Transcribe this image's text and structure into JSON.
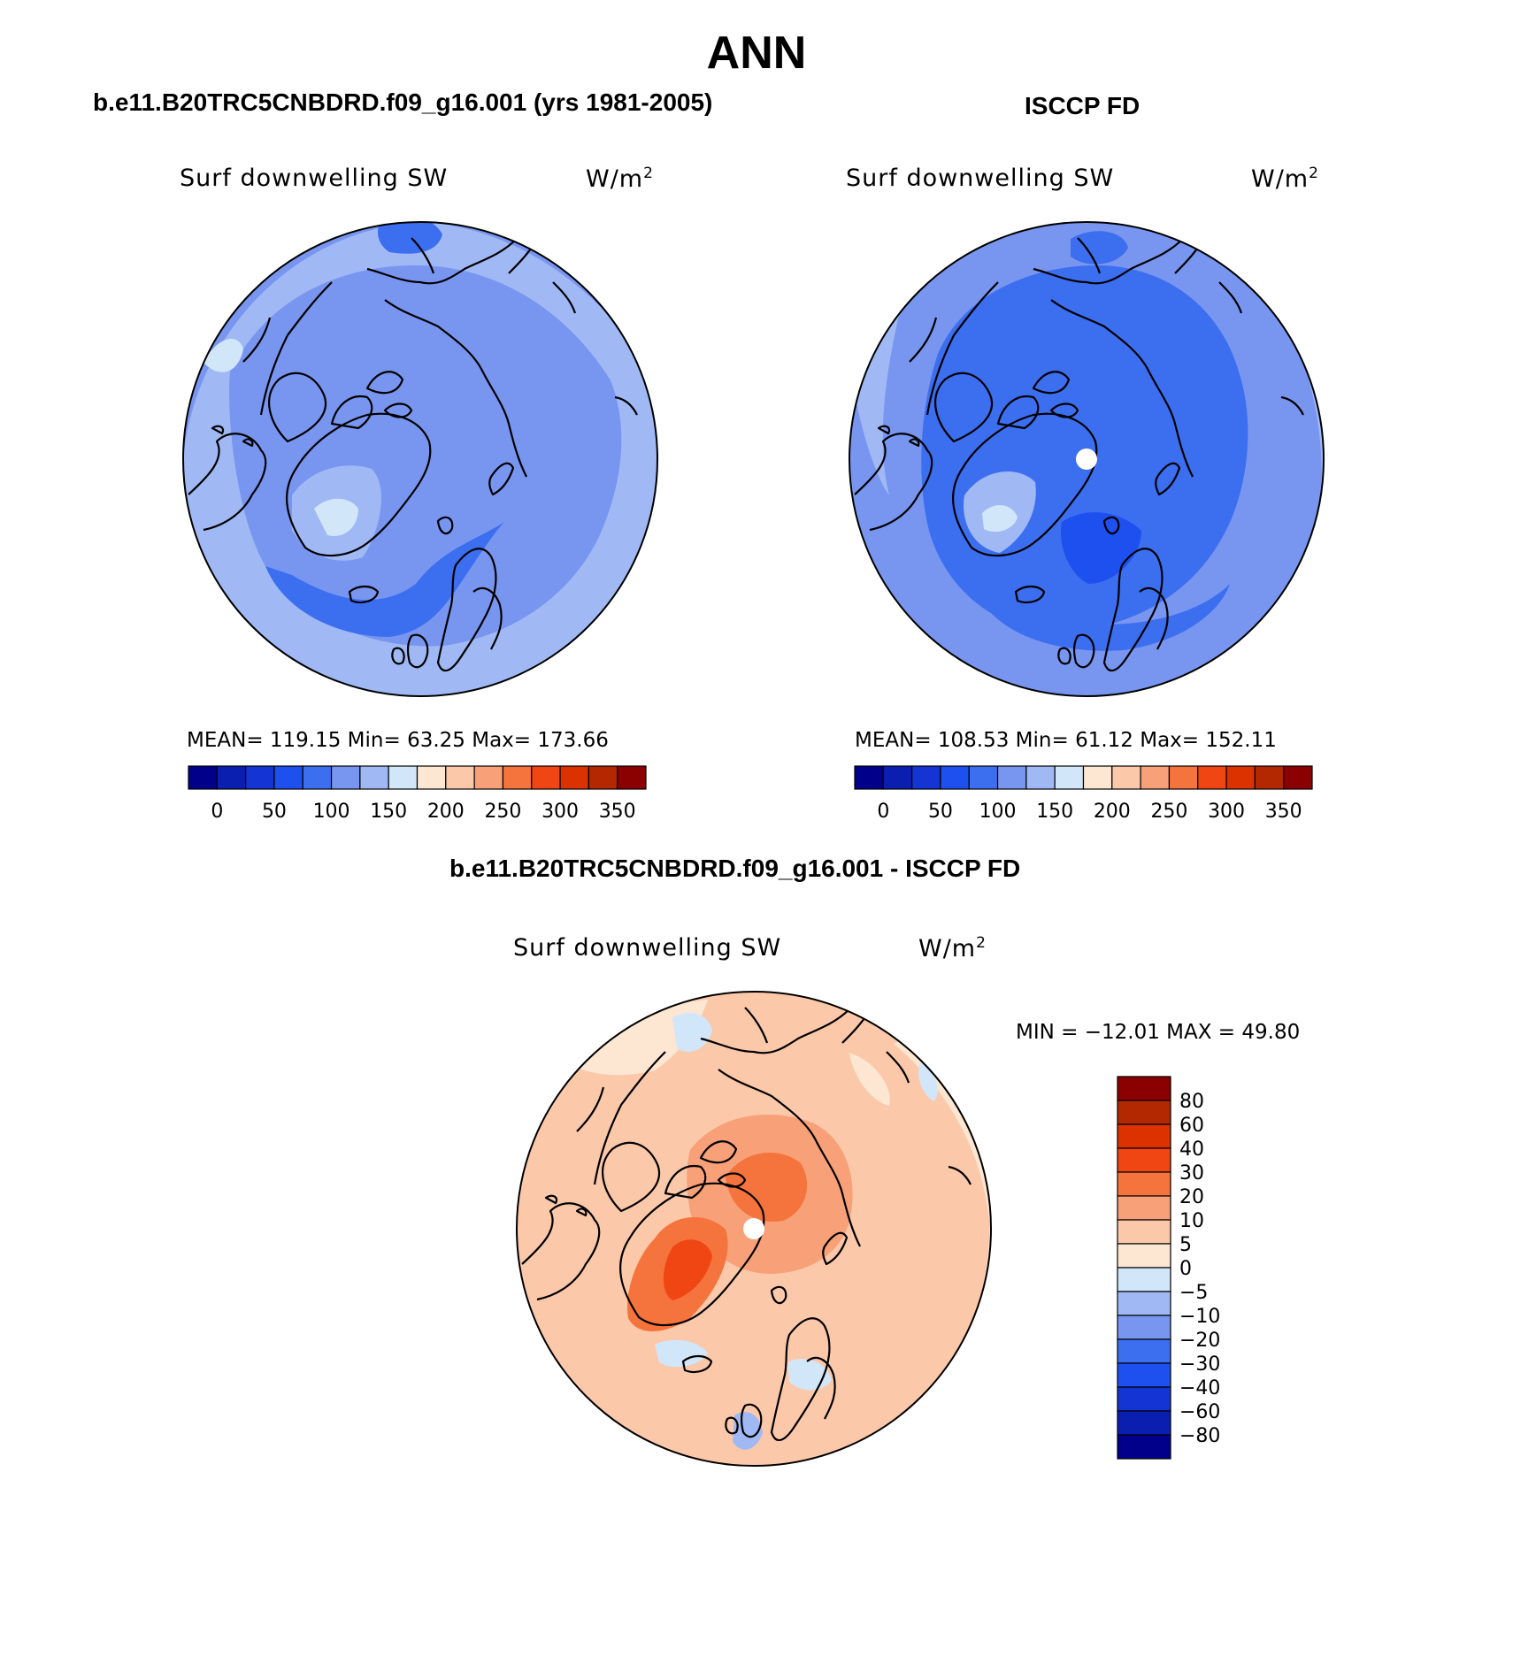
{
  "title": "ANN",
  "panels": {
    "model": {
      "case_title": "b.e11.B20TRC5CNBDRD.f09_g16.001 (yrs 1981-2005)",
      "variable": "Surf downwelling SW",
      "units": "W/m",
      "units_exp": "2",
      "stats": "MEAN= 119.15   Min=   63.25   Max= 173.66"
    },
    "obs": {
      "case_title": "ISCCP FD",
      "variable": "Surf downwelling SW",
      "units": "W/m",
      "units_exp": "2",
      "stats": "MEAN= 108.53   Min=   61.12   Max= 152.11"
    },
    "diff": {
      "case_title": "b.e11.B20TRC5CNBDRD.f09_g16.001 - ISCCP FD",
      "variable": "Surf downwelling SW",
      "units": "W/m",
      "units_exp": "2",
      "stats": "MIN = −12.01 MAX =   49.80"
    }
  },
  "abs_colorbar": {
    "labels": [
      "0",
      "50",
      "100",
      "150",
      "200",
      "250",
      "300",
      "350"
    ],
    "colors": [
      "#00008b",
      "#0a1fb0",
      "#1434d4",
      "#1e50f0",
      "#3c6ef0",
      "#7896f0",
      "#a0b9f5",
      "#d2e6fa",
      "#fde6d2",
      "#fcc8aa",
      "#f8a078",
      "#f5733c",
      "#f04614",
      "#dc3200",
      "#b42800",
      "#8b0000"
    ]
  },
  "diff_colorbar": {
    "labels": [
      "80",
      "60",
      "40",
      "30",
      "20",
      "10",
      "5",
      "0",
      "−5",
      "−10",
      "−20",
      "−30",
      "−40",
      "−60",
      "−80"
    ],
    "colors": [
      "#8b0000",
      "#b42800",
      "#dc3200",
      "#f04614",
      "#f5733c",
      "#f8a078",
      "#fcc8aa",
      "#fde6d2",
      "#d2e6fa",
      "#a0b9f5",
      "#7896f0",
      "#3c6ef0",
      "#1e50f0",
      "#1434d4",
      "#0a1fb0",
      "#00008b"
    ]
  }
}
